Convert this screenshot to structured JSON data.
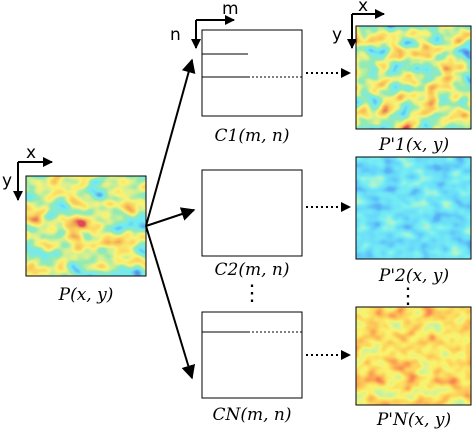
{
  "input_field": {
    "caption": "P(x, y)",
    "axis_x": "x",
    "axis_y": "y"
  },
  "ccd_axes": {
    "axis_m": "m",
    "axis_n": "n"
  },
  "output_axes": {
    "axis_x": "x",
    "axis_y": "y"
  },
  "channels": [
    {
      "ccd_label": "C1(m, n)",
      "output_label": "P'1(x, y)",
      "palette": "full-range",
      "scan_lines": 2
    },
    {
      "ccd_label": "C2(m, n)",
      "output_label": "P'2(x, y)",
      "palette": "low-range",
      "scan_lines": 0
    },
    {
      "ccd_label": "CN(m, n)",
      "output_label": "P'N(x, y)",
      "palette": "high-range",
      "scan_lines": 1
    }
  ],
  "ellipsis": "⋮",
  "colors": {
    "red": "#c0101a",
    "orange": "#f08a18",
    "yellow": "#f4e62a",
    "green": "#4fd46a",
    "cyan": "#2ad0e8",
    "blue": "#1830c8"
  }
}
